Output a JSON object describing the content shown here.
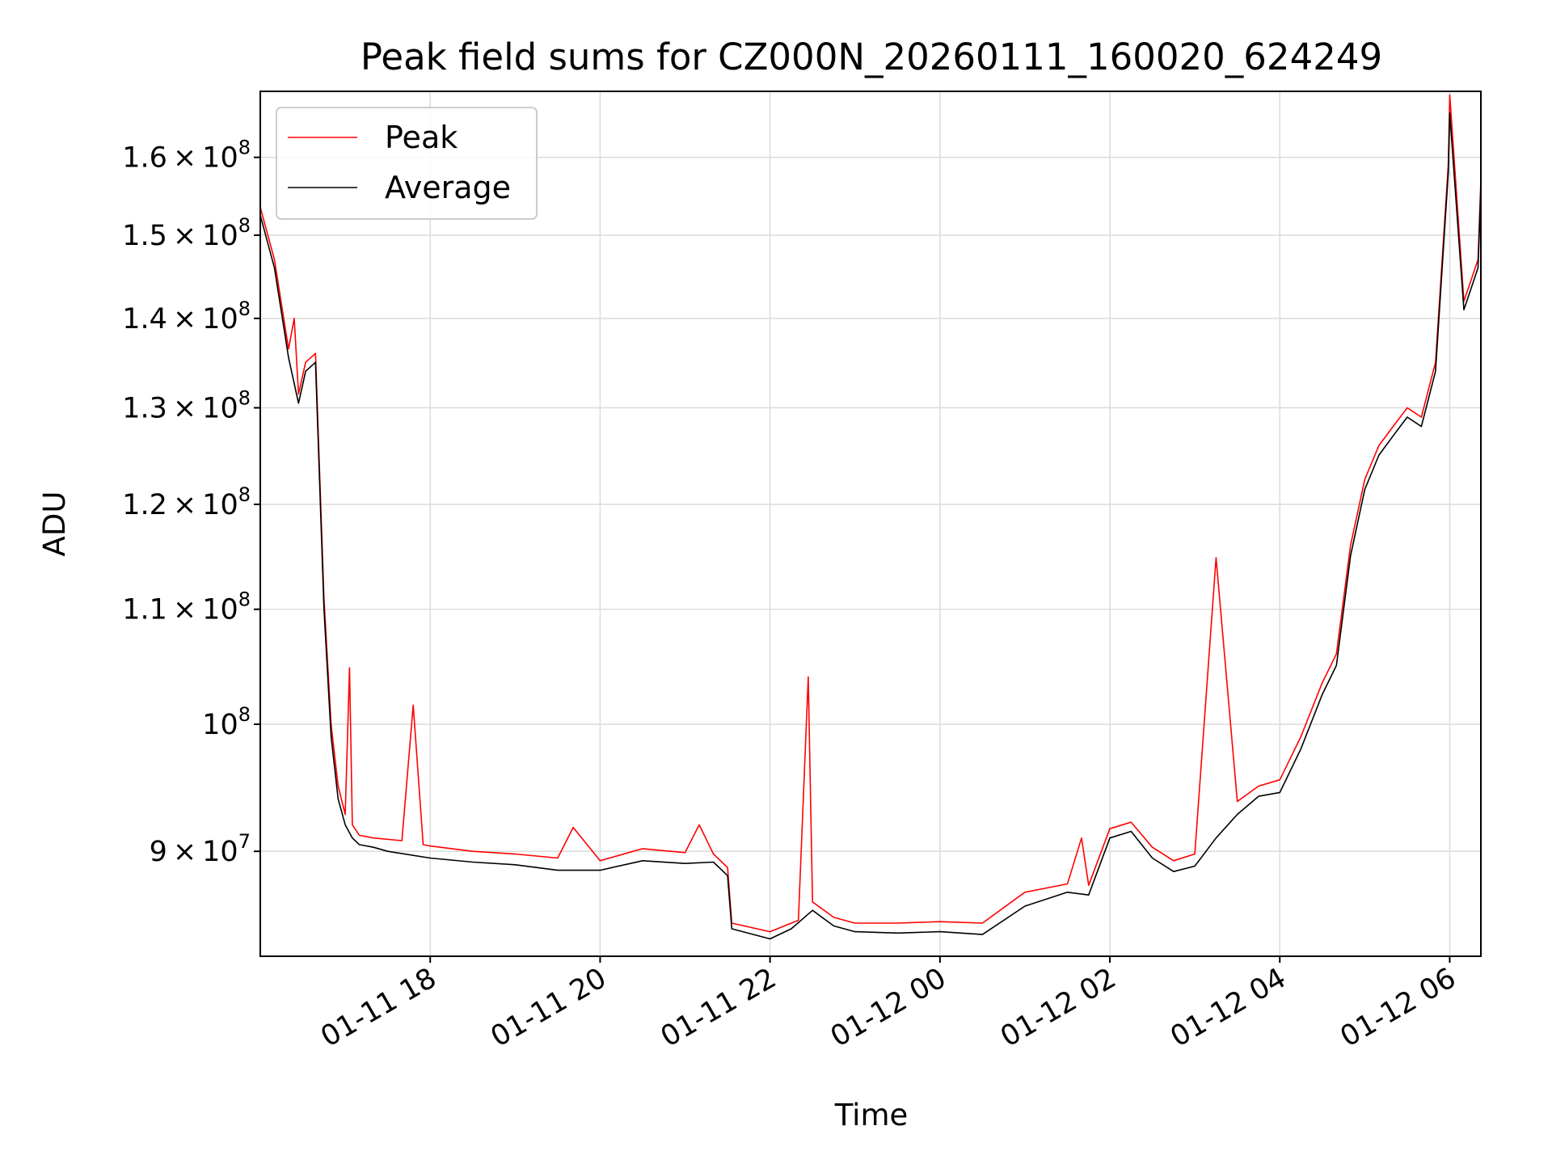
{
  "chart_data": {
    "type": "line",
    "title": "Peak field sums for CZ000N_20260111_160020_624249",
    "xlabel": "Time",
    "ylabel": "ADU",
    "x_unit": "hours",
    "x_origin_label": "2026-01-11 16:00",
    "xlim": [
      "2026-01-11 16:00",
      "2026-01-12 06:22"
    ],
    "y_scale": "log",
    "ylim": [
      82500000,
      169000000
    ],
    "grid": true,
    "legend_position": "upper-left",
    "x_ticks": [
      {
        "value": "2026-01-11 18:00",
        "label": "01-11 18"
      },
      {
        "value": "2026-01-11 20:00",
        "label": "01-11 20"
      },
      {
        "value": "2026-01-11 22:00",
        "label": "01-11 22"
      },
      {
        "value": "2026-01-12 00:00",
        "label": "01-12 00"
      },
      {
        "value": "2026-01-12 02:00",
        "label": "01-12 02"
      },
      {
        "value": "2026-01-12 04:00",
        "label": "01-12 04"
      },
      {
        "value": "2026-01-12 06:00",
        "label": "01-12 06"
      }
    ],
    "y_ticks": [
      {
        "value": 90000000,
        "mant": "9",
        "exp": "7"
      },
      {
        "value": 100000000,
        "mant": "",
        "exp": "8"
      },
      {
        "value": 110000000,
        "mant": "1.1",
        "exp": "8"
      },
      {
        "value": 120000000,
        "mant": "1.2",
        "exp": "8"
      },
      {
        "value": 130000000,
        "mant": "1.3",
        "exp": "8"
      },
      {
        "value": 140000000,
        "mant": "1.4",
        "exp": "8"
      },
      {
        "value": 150000000,
        "mant": "1.5",
        "exp": "8"
      },
      {
        "value": 160000000,
        "mant": "1.6",
        "exp": "8"
      }
    ],
    "series": [
      {
        "name": "Average",
        "color": "#000000",
        "x": [
          "2026-01-11 16:00",
          "2026-01-11 16:10",
          "2026-01-11 16:20",
          "2026-01-11 16:27",
          "2026-01-11 16:32",
          "2026-01-11 16:39",
          "2026-01-11 16:45",
          "2026-01-11 16:50",
          "2026-01-11 16:55",
          "2026-01-11 17:00",
          "2026-01-11 17:05",
          "2026-01-11 17:10",
          "2026-01-11 17:20",
          "2026-01-11 17:30",
          "2026-01-11 18:00",
          "2026-01-11 18:30",
          "2026-01-11 19:00",
          "2026-01-11 19:30",
          "2026-01-11 20:00",
          "2026-01-11 20:30",
          "2026-01-11 21:00",
          "2026-01-11 21:20",
          "2026-01-11 21:30",
          "2026-01-11 21:33",
          "2026-01-11 22:00",
          "2026-01-11 22:15",
          "2026-01-11 22:30",
          "2026-01-11 22:45",
          "2026-01-11 23:00",
          "2026-01-11 23:30",
          "2026-01-12 00:00",
          "2026-01-12 00:30",
          "2026-01-12 01:00",
          "2026-01-12 01:30",
          "2026-01-12 01:45",
          "2026-01-12 02:00",
          "2026-01-12 02:15",
          "2026-01-12 02:30",
          "2026-01-12 02:45",
          "2026-01-12 03:00",
          "2026-01-12 03:15",
          "2026-01-12 03:30",
          "2026-01-12 03:45",
          "2026-01-12 04:00",
          "2026-01-12 04:15",
          "2026-01-12 04:30",
          "2026-01-12 04:40",
          "2026-01-12 04:50",
          "2026-01-12 05:00",
          "2026-01-12 05:10",
          "2026-01-12 05:20",
          "2026-01-12 05:30",
          "2026-01-12 05:40",
          "2026-01-12 05:50",
          "2026-01-12 05:59",
          "2026-01-12 06:00",
          "2026-01-12 06:10",
          "2026-01-12 06:20",
          "2026-01-12 06:22"
        ],
        "values": [
          152500000,
          146000000,
          135500000,
          130500000,
          134000000,
          135000000,
          110000000,
          99000000,
          94000000,
          92000000,
          91000000,
          90500000,
          90300000,
          90000000,
          89500000,
          89200000,
          89000000,
          88600000,
          88600000,
          89300000,
          89100000,
          89200000,
          88200000,
          84400000,
          83700000,
          84400000,
          85700000,
          84600000,
          84200000,
          84100000,
          84200000,
          84000000,
          86000000,
          87000000,
          86800000,
          91000000,
          91500000,
          89500000,
          88500000,
          88900000,
          91000000,
          92800000,
          94200000,
          94500000,
          98000000,
          102500000,
          105000000,
          115000000,
          121500000,
          125000000,
          127000000,
          129000000,
          128000000,
          134000000,
          158000000,
          166000000,
          141000000,
          146000000,
          156000000
        ]
      },
      {
        "name": "Peak",
        "color": "#ff0000",
        "x": [
          "2026-01-11 16:00",
          "2026-01-11 16:10",
          "2026-01-11 16:20",
          "2026-01-11 16:24",
          "2026-01-11 16:27",
          "2026-01-11 16:32",
          "2026-01-11 16:39",
          "2026-01-11 16:45",
          "2026-01-11 16:50",
          "2026-01-11 16:55",
          "2026-01-11 17:00",
          "2026-01-11 17:03",
          "2026-01-11 17:05",
          "2026-01-11 17:10",
          "2026-01-11 17:20",
          "2026-01-11 17:40",
          "2026-01-11 17:48",
          "2026-01-11 17:55",
          "2026-01-11 18:00",
          "2026-01-11 18:30",
          "2026-01-11 19:00",
          "2026-01-11 19:30",
          "2026-01-11 19:41",
          "2026-01-11 20:00",
          "2026-01-11 20:30",
          "2026-01-11 21:00",
          "2026-01-11 21:10",
          "2026-01-11 21:20",
          "2026-01-11 21:30",
          "2026-01-11 21:33",
          "2026-01-11 22:00",
          "2026-01-11 22:20",
          "2026-01-11 22:27",
          "2026-01-11 22:30",
          "2026-01-11 22:45",
          "2026-01-11 23:00",
          "2026-01-11 23:30",
          "2026-01-12 00:00",
          "2026-01-12 00:30",
          "2026-01-12 01:00",
          "2026-01-12 01:30",
          "2026-01-12 01:40",
          "2026-01-12 01:45",
          "2026-01-12 02:00",
          "2026-01-12 02:15",
          "2026-01-12 02:30",
          "2026-01-12 02:45",
          "2026-01-12 03:00",
          "2026-01-12 03:15",
          "2026-01-12 03:30",
          "2026-01-12 03:45",
          "2026-01-12 04:00",
          "2026-01-12 04:15",
          "2026-01-12 04:30",
          "2026-01-12 04:40",
          "2026-01-12 04:50",
          "2026-01-12 05:00",
          "2026-01-12 05:10",
          "2026-01-12 05:20",
          "2026-01-12 05:30",
          "2026-01-12 05:40",
          "2026-01-12 05:50",
          "2026-01-12 05:59",
          "2026-01-12 06:00",
          "2026-01-12 06:10",
          "2026-01-12 06:20",
          "2026-01-12 06:22"
        ],
        "values": [
          153500000,
          147000000,
          136500000,
          140000000,
          131500000,
          135000000,
          136000000,
          111000000,
          100000000,
          95000000,
          92800000,
          104800000,
          92000000,
          91200000,
          91000000,
          90800000,
          101600000,
          90500000,
          90400000,
          90000000,
          89800000,
          89500000,
          91800000,
          89300000,
          90200000,
          89900000,
          92000000,
          89800000,
          88800000,
          84800000,
          84200000,
          85000000,
          104000000,
          86300000,
          85200000,
          84800000,
          84800000,
          84900000,
          84800000,
          87000000,
          87600000,
          91000000,
          87500000,
          91700000,
          92200000,
          90300000,
          89300000,
          89800000,
          114800000,
          93800000,
          95000000,
          95500000,
          99000000,
          103500000,
          106000000,
          116000000,
          122500000,
          126000000,
          128000000,
          130000000,
          129000000,
          135000000,
          159000000,
          168500000,
          142000000,
          147000000,
          157000000
        ]
      }
    ]
  }
}
